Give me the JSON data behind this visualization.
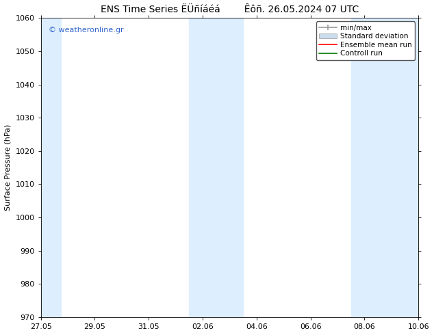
{
  "title_left": "ENS Time Series ËÜñíáéá",
  "title_right": "Êôñ. 26.05.2024 07 UTC",
  "ylabel": "Surface Pressure (hPa)",
  "ylim": [
    970,
    1060
  ],
  "yticks": [
    970,
    980,
    990,
    1000,
    1010,
    1020,
    1030,
    1040,
    1050,
    1060
  ],
  "xtick_labels": [
    "27.05",
    "29.05",
    "31.05",
    "02.06",
    "04.06",
    "06.06",
    "08.06",
    "10.06"
  ],
  "xtick_positions": [
    0,
    2,
    4,
    6,
    8,
    10,
    12,
    14
  ],
  "bg_color": "#ffffff",
  "plot_bg_color": "#ffffff",
  "shaded_bands": [
    {
      "x_start": 0.0,
      "x_end": 0.75,
      "color": "#ddeeff"
    },
    {
      "x_start": 5.5,
      "x_end": 7.5,
      "color": "#ddeeff"
    },
    {
      "x_start": 11.5,
      "x_end": 14.0,
      "color": "#ddeeff"
    }
  ],
  "watermark": "© weatheronline.gr",
  "watermark_color": "#3366cc",
  "title_fontsize": 10,
  "axis_fontsize": 8,
  "tick_fontsize": 8,
  "legend_fontsize": 7.5,
  "x_total": 14
}
